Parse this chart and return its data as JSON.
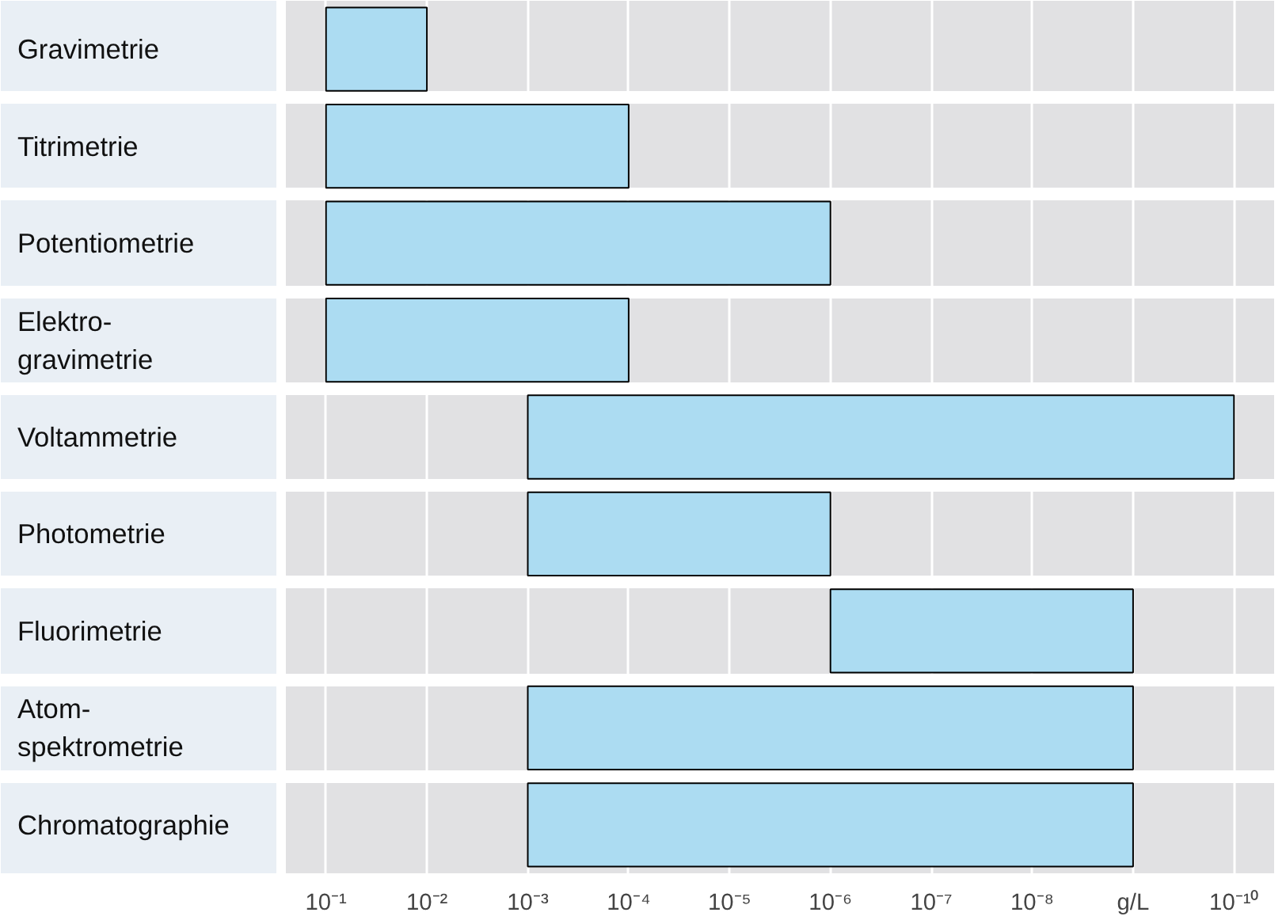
{
  "chart_data": {
    "type": "bar",
    "orientation": "horizontal",
    "log": "x",
    "grid": "x",
    "categories": [
      "Gravimetrie",
      "Titrimetrie",
      "Potentiometrie",
      "Elektro-\ngravimetrie",
      "Voltammetrie",
      "Photometrie",
      "Fluorimetrie",
      "Atom-\nspektrometrie",
      "Chromatographie"
    ],
    "base": [
      0.01,
      0.0001,
      1e-06,
      0.0001,
      1e-10,
      1e-06,
      1e-09,
      1e-09,
      1e-09
    ],
    "values": [
      0.09,
      0.0999,
      0.099999,
      0.0999,
      0.0009999999,
      0.000999,
      9.99e-07,
      0.000999999,
      0.000999999
    ],
    "color": "#acdcf2",
    "xlim": [
      0.25,
      4e-11
    ],
    "xticks": [
      {
        "value": 0.1,
        "label": "10⁻¹"
      },
      {
        "value": 0.01,
        "label": "10⁻²"
      },
      {
        "value": 0.001,
        "label": "10⁻³"
      },
      {
        "value": 0.0001,
        "label": "10⁻⁴"
      },
      {
        "value": 1e-05,
        "label": "10⁻⁵"
      },
      {
        "value": 1e-06,
        "label": "10⁻⁶"
      },
      {
        "value": 1e-07,
        "label": "10⁻⁷"
      },
      {
        "value": 1e-08,
        "label": "10⁻⁸"
      },
      {
        "value": 1e-09,
        "label": "g/L"
      },
      {
        "value": 1e-10,
        "label": "10⁻¹⁰"
      }
    ]
  }
}
